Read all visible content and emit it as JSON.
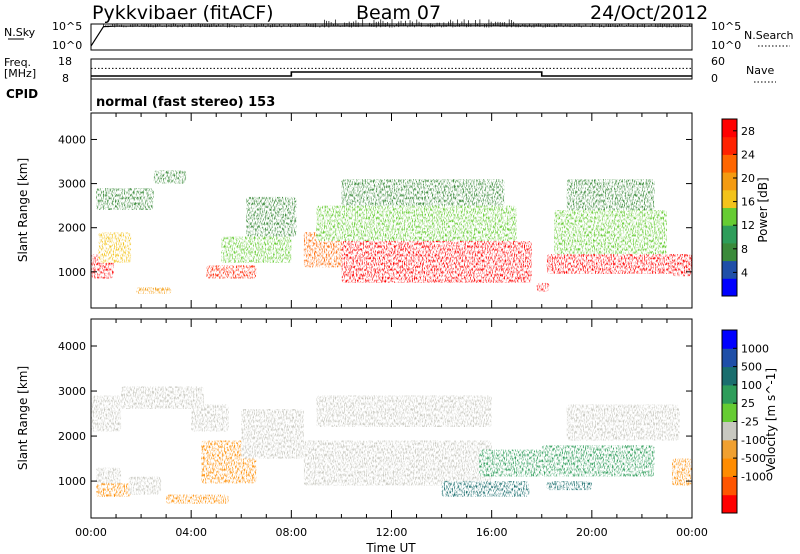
{
  "header": {
    "station": "Pykkvibaer (fitACF)",
    "beam": "Beam 07",
    "date": "24/Oct/2012"
  },
  "colors": {
    "power": [
      "#0000ff",
      "#1f4fa8",
      "#3a8a3a",
      "#2e9d5a",
      "#66cc33",
      "#f3c31b",
      "#f49b11",
      "#ff6600",
      "#ff2200",
      "#ff0000"
    ],
    "velocity": [
      "#ff0000",
      "#ff5500",
      "#ff8c00",
      "#f0a030",
      "#c8c8c0",
      "#66cc33",
      "#2e9d5a",
      "#1a6e6e",
      "#1f4fa8",
      "#0000ff"
    ],
    "ground_scatter": "#c8c8c0"
  },
  "chart_data": [
    {
      "type": "line",
      "panel": "noise",
      "left_label": "N.Sky",
      "right_label": "N.Search",
      "left_ticks": [
        "10^5",
        "10^0"
      ],
      "right_ticks": [
        "10^5",
        "10^0"
      ],
      "x_range_hours": [
        0,
        24
      ],
      "series": [
        {
          "name": "N.Sky",
          "style": "solid",
          "x": [
            0,
            0.5,
            1,
            4,
            8,
            12,
            16,
            20,
            24
          ],
          "y_fraction_of_axis": [
            0.15,
            0.9,
            0.92,
            0.92,
            0.92,
            0.93,
            0.93,
            0.92,
            0.92
          ]
        }
      ]
    },
    {
      "type": "line",
      "panel": "frequency",
      "left_label_top": "Freq.",
      "left_label_bottom": "[MHz]",
      "right_label": "Nave",
      "left_ticks": [
        18,
        8
      ],
      "right_ticks": [
        60,
        0
      ],
      "left_range": [
        8,
        18
      ],
      "x_range_hours": [
        0,
        24
      ],
      "series": [
        {
          "name": "Freq.",
          "style": "solid",
          "x": [
            0,
            8,
            8,
            18,
            18,
            24
          ],
          "y": [
            9.5,
            9.5,
            11.5,
            11.5,
            9.5,
            9.5
          ]
        },
        {
          "name": "Nave",
          "style": "dotted",
          "x": [
            0,
            24
          ],
          "y": [
            13.3,
            13.3
          ]
        }
      ]
    },
    {
      "type": "table",
      "panel": "cpid",
      "label": "CPID",
      "text": "normal (fast stereo) 153"
    },
    {
      "type": "heatmap",
      "panel": "power",
      "ylabel": "Slant Range [km]",
      "yticks": [
        1000,
        2000,
        3000,
        4000
      ],
      "ylim": [
        180,
        4600
      ],
      "xlim_hours": [
        0,
        24
      ],
      "colorbar_label": "Power [dB]",
      "colorbar_ticks": [
        4,
        8,
        12,
        16,
        20,
        24,
        28
      ],
      "colorbar_range": [
        0,
        30
      ],
      "regions": [
        {
          "x": [
            0.0,
            0.9
          ],
          "r": [
            850,
            1400
          ],
          "level": 27
        },
        {
          "x": [
            0.3,
            1.6
          ],
          "r": [
            1200,
            1900
          ],
          "level": 15
        },
        {
          "x": [
            0.2,
            2.5
          ],
          "r": [
            2400,
            2900
          ],
          "level": 8
        },
        {
          "x": [
            2.5,
            3.8
          ],
          "r": [
            3000,
            3300
          ],
          "level": 8
        },
        {
          "x": [
            1.8,
            3.2
          ],
          "r": [
            500,
            650
          ],
          "level": 18
        },
        {
          "x": [
            4.6,
            6.6
          ],
          "r": [
            850,
            1150
          ],
          "level": 26
        },
        {
          "x": [
            5.2,
            8.0
          ],
          "r": [
            1200,
            1800
          ],
          "level": 12
        },
        {
          "x": [
            6.2,
            8.2
          ],
          "r": [
            1800,
            2700
          ],
          "level": 8
        },
        {
          "x": [
            8.5,
            10.0
          ],
          "r": [
            1100,
            1900
          ],
          "level": 22
        },
        {
          "x": [
            10.0,
            17.6
          ],
          "r": [
            750,
            1700
          ],
          "level": 28
        },
        {
          "x": [
            9.0,
            17.0
          ],
          "r": [
            1700,
            2500
          ],
          "level": 12
        },
        {
          "x": [
            10.0,
            16.5
          ],
          "r": [
            2500,
            3100
          ],
          "level": 8
        },
        {
          "x": [
            17.8,
            18.3
          ],
          "r": [
            550,
            750
          ],
          "level": 29
        },
        {
          "x": [
            18.2,
            23.5
          ],
          "r": [
            950,
            1400
          ],
          "level": 27
        },
        {
          "x": [
            18.5,
            23.0
          ],
          "r": [
            1400,
            2400
          ],
          "level": 13
        },
        {
          "x": [
            19.0,
            22.5
          ],
          "r": [
            2400,
            3100
          ],
          "level": 8
        },
        {
          "x": [
            23.2,
            24.0
          ],
          "r": [
            900,
            1400
          ],
          "level": 28
        }
      ]
    },
    {
      "type": "heatmap",
      "panel": "velocity",
      "ylabel": "Slant Range [km]",
      "yticks": [
        1000,
        2000,
        3000,
        4000
      ],
      "ylim": [
        180,
        4600
      ],
      "xlim_hours": [
        0,
        24
      ],
      "xlabel": "Time UT",
      "xtick_labels": [
        "00:00",
        "04:00",
        "08:00",
        "12:00",
        "16:00",
        "20:00",
        "00:00"
      ],
      "colorbar_label": "Velocity [m s^-1]",
      "colorbar_ticks": [
        1000,
        500,
        100,
        25,
        -25,
        -100,
        -500,
        -1000
      ],
      "regions": [
        {
          "x": [
            0.0,
            1.2
          ],
          "r": [
            2100,
            2900
          ],
          "class": "ground"
        },
        {
          "x": [
            1.2,
            4.5
          ],
          "r": [
            2600,
            3100
          ],
          "class": "ground"
        },
        {
          "x": [
            4.0,
            5.5
          ],
          "r": [
            2100,
            2700
          ],
          "class": "ground"
        },
        {
          "x": [
            0.2,
            1.2
          ],
          "r": [
            900,
            1300
          ],
          "class": "ground"
        },
        {
          "x": [
            0.2,
            1.6
          ],
          "r": [
            650,
            950
          ],
          "level": -300
        },
        {
          "x": [
            1.5,
            2.8
          ],
          "r": [
            700,
            1100
          ],
          "class": "ground"
        },
        {
          "x": [
            3.0,
            5.5
          ],
          "r": [
            500,
            700
          ],
          "level": -150
        },
        {
          "x": [
            4.4,
            6.6
          ],
          "r": [
            950,
            1900
          ],
          "level": -400
        },
        {
          "x": [
            6.0,
            8.5
          ],
          "r": [
            1500,
            2600
          ],
          "class": "ground"
        },
        {
          "x": [
            8.5,
            16.0
          ],
          "r": [
            900,
            1900
          ],
          "class": "ground"
        },
        {
          "x": [
            9.0,
            16.0
          ],
          "r": [
            2200,
            2900
          ],
          "class": "ground"
        },
        {
          "x": [
            14.0,
            17.5
          ],
          "r": [
            650,
            1000
          ],
          "level": 700
        },
        {
          "x": [
            15.5,
            18.0
          ],
          "r": [
            1100,
            1700
          ],
          "level": 150
        },
        {
          "x": [
            18.2,
            20.0
          ],
          "r": [
            800,
            1000
          ],
          "level": 700
        },
        {
          "x": [
            18.0,
            22.5
          ],
          "r": [
            1100,
            1800
          ],
          "level": 200
        },
        {
          "x": [
            19.0,
            23.5
          ],
          "r": [
            1900,
            2700
          ],
          "class": "ground"
        },
        {
          "x": [
            23.2,
            24.0
          ],
          "r": [
            900,
            1500
          ],
          "level": -200
        }
      ]
    }
  ]
}
